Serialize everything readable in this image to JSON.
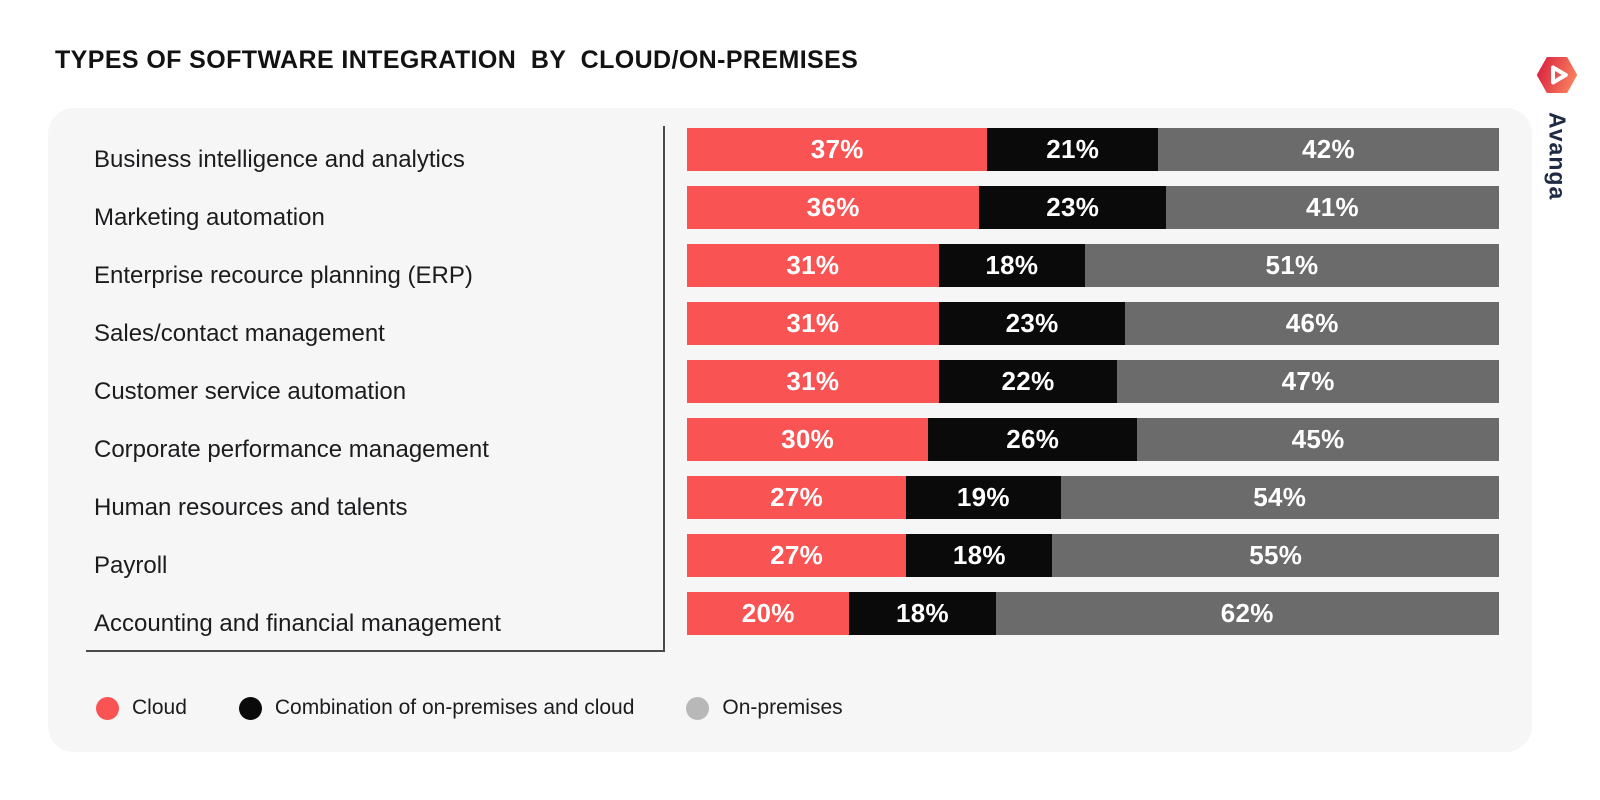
{
  "header": {
    "title": "TYPES OF SOFTWARE INTEGRATION  BY  CLOUD/ON-PREMISES",
    "brand": "Avanga"
  },
  "colors": {
    "cloud": "#f95353",
    "combination": "#0a0a0a",
    "on_premises": "#6b6b6b",
    "legend_on_premises_dot": "#b8b8b8",
    "card_background": "#f6f6f7",
    "brand_text": "#1f2a44",
    "logo_gradient_left": "#d92240",
    "logo_gradient_right": "#fb8660"
  },
  "chart_data": {
    "type": "bar",
    "orientation": "horizontal",
    "stacked": true,
    "unit": "%",
    "xlim": [
      0,
      100
    ],
    "grid": false,
    "legend_position": "bottom",
    "title": "TYPES OF SOFTWARE INTEGRATION  BY  CLOUD/ON-PREMISES",
    "categories": [
      "Business intelligence and analytics",
      "Marketing automation",
      "Enterprise recource planning (ERP)",
      "Sales/contact management",
      "Customer service automation",
      "Corporate performance management",
      "Human resources and talents",
      "Payroll",
      "Accounting and financial management"
    ],
    "series": [
      {
        "key": "cloud",
        "name": "Cloud",
        "color": "#f95353",
        "values": [
          37,
          36,
          31,
          31,
          31,
          30,
          27,
          27,
          20
        ],
        "display": [
          "37%",
          "36%",
          "31%",
          "31%",
          "31%",
          "30%",
          "27%",
          "27%",
          "20%"
        ]
      },
      {
        "key": "combination",
        "name": "Combination of on-premises and cloud",
        "color": "#0a0a0a",
        "values": [
          21,
          23,
          18,
          23,
          22,
          26,
          19,
          18,
          18
        ],
        "display": [
          "21%",
          "23%",
          "18%",
          "23%",
          "22%",
          "26%",
          "19%",
          "18%",
          "18%"
        ]
      },
      {
        "key": "on-premises",
        "name": "On-premises",
        "color": "#6b6b6b",
        "values": [
          42,
          41,
          51,
          46,
          47,
          45,
          54,
          55,
          62
        ],
        "display": [
          "42%",
          "41%",
          "51%",
          "46%",
          "47%",
          "45%",
          "54%",
          "55%",
          "62%"
        ]
      }
    ]
  },
  "legend": {
    "items": [
      {
        "key": "cloud",
        "label": "Cloud",
        "color": "#f95353"
      },
      {
        "key": "combination",
        "label": "Combination of on-premises and cloud",
        "color": "#0a0a0a"
      },
      {
        "key": "on-premises",
        "label": "On-premises",
        "color": "#b8b8b8"
      }
    ]
  }
}
